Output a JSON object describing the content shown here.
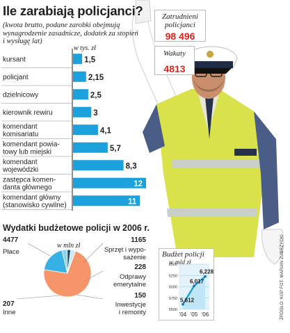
{
  "title": "Ile zarabiają policjanci?",
  "subtitle": "(kwota brutto, podane zarobki obejmują wynagrodzenie zasadnicze, dodatek za stopień i wysługę lat)",
  "info_boxes": [
    {
      "label": "Zatrudnieni policjanci",
      "value": "98 496"
    },
    {
      "label": "Wakaty",
      "value": "4813"
    }
  ],
  "section2_title": "Wydatki budżetowe policji w 2006 r.",
  "credit": "ŹRÓDŁO: KGP   FOT. MARIAN ZUBRZYCKI",
  "colors": {
    "bar": "#1da1dc",
    "pie_main": "#f7956a",
    "pie_accent": "#35b1e6",
    "value_red": "#e2231a"
  },
  "chart_data": [
    {
      "type": "bar",
      "orientation": "horizontal",
      "unit_label": "w tys. zł",
      "categories": [
        "kursant",
        "policjant",
        "dzielnicowy",
        "kierownik rewiru",
        "komendant komisariatu",
        "komendant powiatowy lub miejski",
        "komendant wojewódzki",
        "zastępca komendanta głównego",
        "komendant główny (stanowisko cywilne)"
      ],
      "category_lines": [
        [
          "kursant"
        ],
        [
          "policjant"
        ],
        [
          "dzielnicowy"
        ],
        [
          "kierownik rewiru"
        ],
        [
          "komendant",
          "komisariatu"
        ],
        [
          "komendant powia-",
          "towy lub miejski"
        ],
        [
          "komendant",
          "wojewódzki"
        ],
        [
          "zastępca komen-",
          "danta głównego"
        ],
        [
          "komendant główny",
          "(stanowisko cywilne)"
        ]
      ],
      "values": [
        1.5,
        2.15,
        2.5,
        3,
        4.1,
        5.7,
        8.3,
        12,
        11
      ],
      "value_labels": [
        "1,5",
        "2,15",
        "2,5",
        "3",
        "4,1",
        "5,7",
        "8,3",
        "12",
        "11"
      ],
      "xlim": [
        0,
        12
      ]
    },
    {
      "type": "pie",
      "unit_label": "w mln zł",
      "slices": [
        {
          "name": "Płace",
          "value": 4477,
          "label": "4477"
        },
        {
          "name": "Sprzęt i wyposażenie",
          "name_lines": [
            "Sprzęt i wypo-",
            "sażenie"
          ],
          "value": 1165,
          "label": "1165"
        },
        {
          "name": "Odprawy emerytalne",
          "name_lines": [
            "Odprawy",
            "emerytalne"
          ],
          "value": 228,
          "label": "228"
        },
        {
          "name": "Inwestycje i remonty",
          "name_lines": [
            "Inwestycje",
            "i remonty"
          ],
          "value": 150,
          "label": "150"
        },
        {
          "name": "Inne",
          "value": 207,
          "label": "207"
        }
      ]
    },
    {
      "type": "line",
      "title": "Budżet policji",
      "unit_label": "w mld zł",
      "x": [
        "'04",
        "'05",
        "'06"
      ],
      "values": [
        5.612,
        6.017,
        6.228
      ],
      "value_labels": [
        "5,612",
        "6,017",
        "6,228"
      ],
      "yticks": [
        5500,
        5750,
        6000,
        6250,
        6500
      ],
      "ylim": [
        5500,
        6500
      ]
    }
  ]
}
